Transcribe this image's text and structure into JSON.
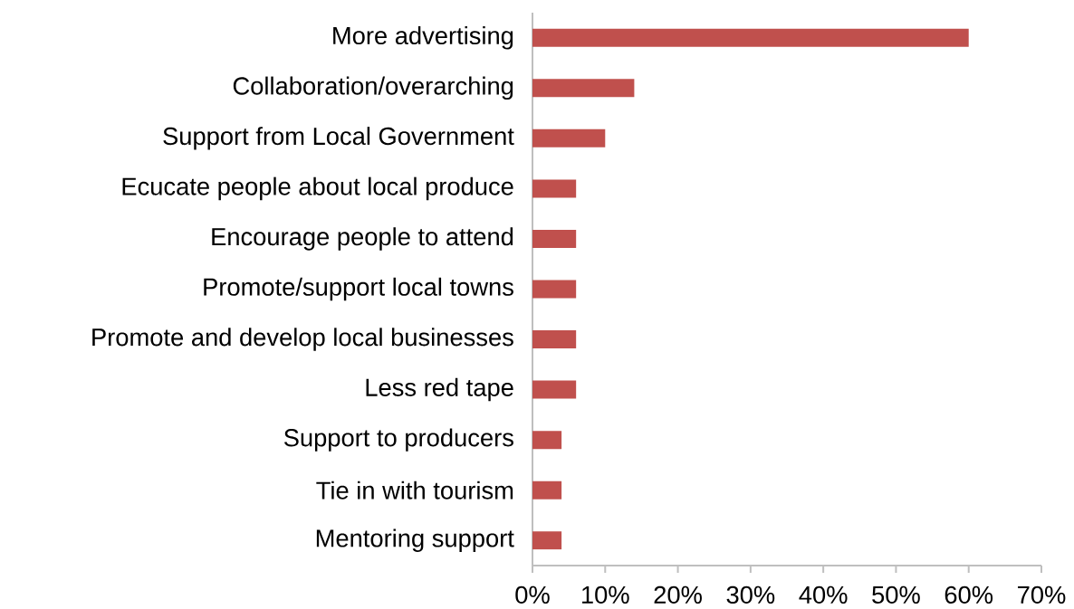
{
  "chart_data": {
    "type": "bar",
    "orientation": "horizontal",
    "color": "#c0504d",
    "categories": [
      "More advertising",
      "Collaboration/overarching",
      "Support from Local Government",
      "Ecucate people about local produce",
      "Encourage people to attend",
      "Promote/support local towns",
      "Promote and develop local businesses",
      "Less red tape",
      "Support to producers",
      "Tie in with tourism",
      "Mentoring support"
    ],
    "values": [
      60,
      14,
      10,
      6,
      6,
      6,
      6,
      6,
      4,
      4,
      4
    ],
    "xlim": [
      0,
      70
    ],
    "xticks": [
      {
        "value": 0,
        "label": "0%"
      },
      {
        "value": 10,
        "label": "10%"
      },
      {
        "value": 20,
        "label": "20%"
      },
      {
        "value": 30,
        "label": "30%"
      },
      {
        "value": 40,
        "label": "40%"
      },
      {
        "value": 50,
        "label": "50%"
      },
      {
        "value": 60,
        "label": "60%"
      },
      {
        "value": 70,
        "label": "70%"
      }
    ]
  }
}
